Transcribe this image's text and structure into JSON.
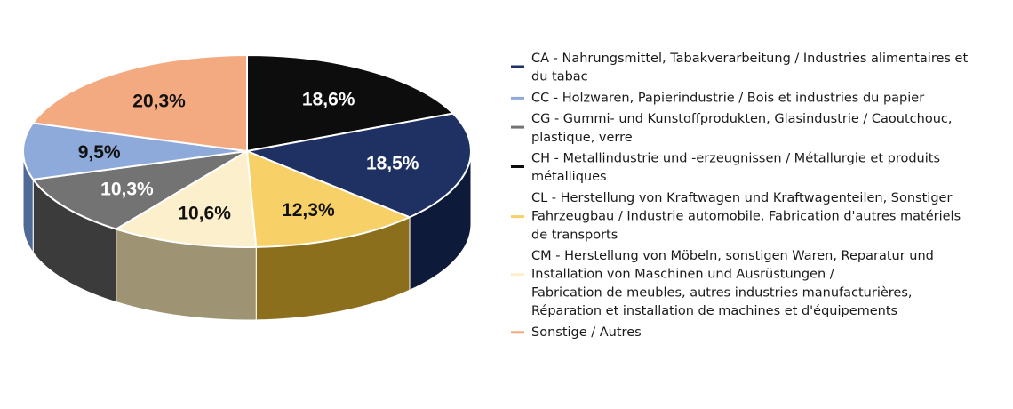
{
  "chart_data": {
    "type": "pie",
    "style": "3d",
    "title": "",
    "legend_position": "right",
    "slices": [
      {
        "code": "CH",
        "value": 18.6,
        "label": "18,6%",
        "color": "#0d0d0d",
        "side_color": "#000000",
        "label_color": "#ffffff",
        "legend_lines": [
          "CH - Metallindustrie und -erzeugnissen / Métallurgie et produits",
          "métalliques"
        ]
      },
      {
        "code": "CA",
        "value": 18.5,
        "label": "18,5%",
        "color": "#1f3163",
        "side_color": "#0e1a3a",
        "label_color": "#ffffff",
        "legend_lines": [
          "CA - Nahrungsmittel, Tabakverarbeitung / Industries alimentaires et",
          "du tabac"
        ]
      },
      {
        "code": "CL",
        "value": 12.3,
        "label": "12,3%",
        "color": "#f7d168",
        "side_color": "#8c6f1c",
        "label_color": "#111111",
        "legend_lines": [
          "CL - Herstellung von Kraftwagen und Kraftwagenteilen, Sonstiger",
          "Fahrzeugbau / Industrie automobile, Fabrication d'autres matériels",
          "de transports"
        ]
      },
      {
        "code": "CM",
        "value": 10.6,
        "label": "10,6%",
        "color": "#fcefcc",
        "side_color": "#9e9473",
        "label_color": "#111111",
        "legend_lines": [
          "CM - Herstellung von Möbeln, sonstigen Waren, Reparatur und",
          "Installation von Maschinen und Ausrüstungen /",
          "Fabrication de meubles, autres industries manufacturières,",
          "Réparation et installation de machines et d'équipements"
        ]
      },
      {
        "code": "CG",
        "value": 10.3,
        "label": "10,3%",
        "color": "#737373",
        "side_color": "#3b3b3b",
        "label_color": "#ffffff",
        "legend_lines": [
          "CG - Gummi- und Kunstoffprodukten, Glasindustrie / Caoutchouc,",
          "plastique, verre"
        ]
      },
      {
        "code": "CC",
        "value": 9.5,
        "label": "9,5%",
        "color": "#8eaadb",
        "side_color": "#4f6a96",
        "label_color": "#111111",
        "legend_lines": [
          "CC - Holzwaren, Papierindustrie / Bois et industries du papier"
        ]
      },
      {
        "code": "Sonstige",
        "value": 20.3,
        "label": "20,3%",
        "color": "#f3aa80",
        "side_color": "#a86a45",
        "label_color": "#111111",
        "legend_lines": [
          "Sonstige / Autres"
        ]
      }
    ],
    "legend_order": [
      "CA",
      "CC",
      "CG",
      "CH",
      "CL",
      "CM",
      "Sonstige"
    ]
  }
}
